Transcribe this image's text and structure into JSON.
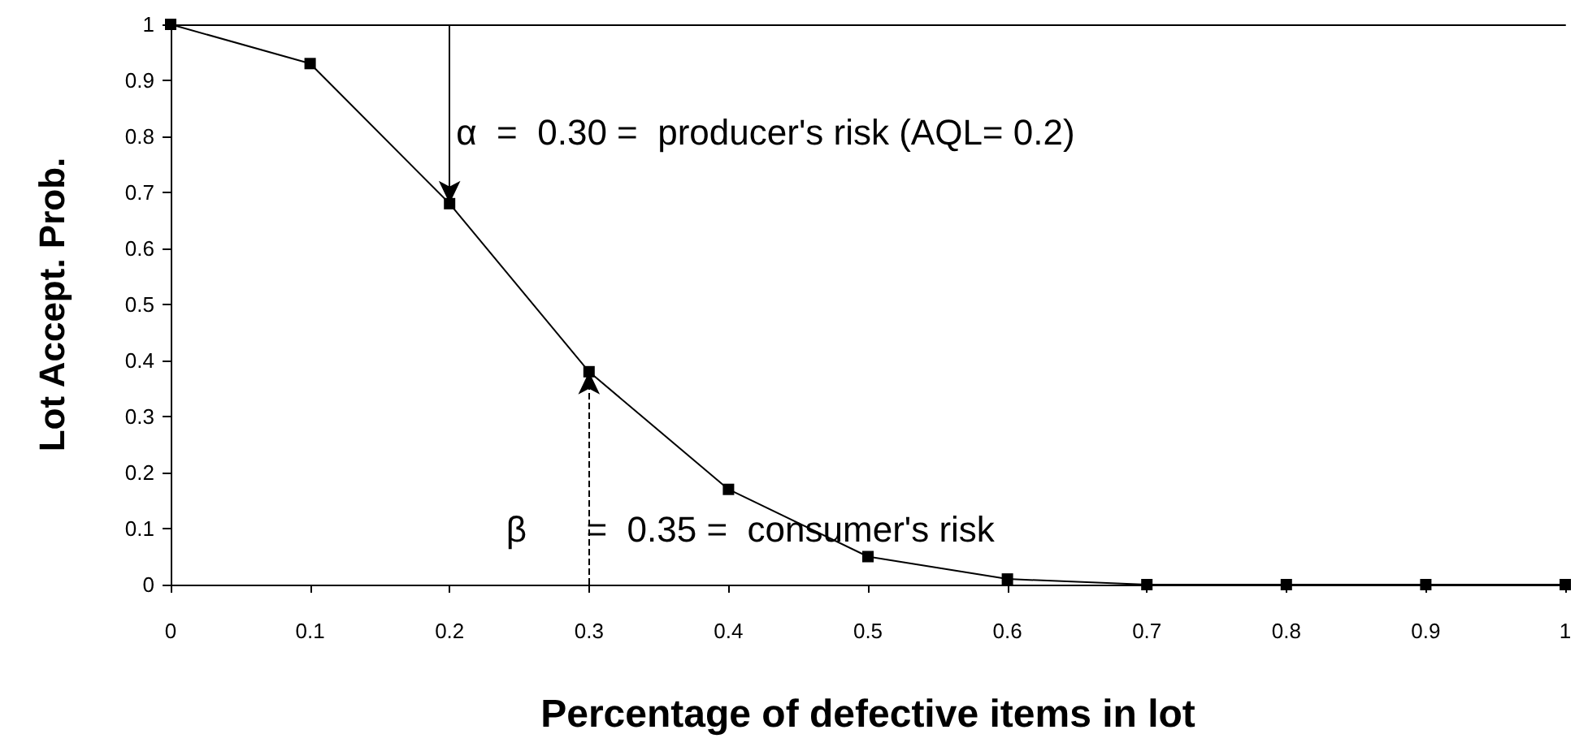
{
  "chart_data": {
    "type": "line",
    "xlabel": "Percentage of defective items in lot",
    "ylabel": "Lot Accept. Prob.",
    "x": [
      0,
      0.1,
      0.2,
      0.3,
      0.4,
      0.5,
      0.6,
      0.7,
      0.8,
      0.9,
      1
    ],
    "series": [
      {
        "color": "#000000",
        "values": [
          1,
          0.93,
          0.68,
          0.38,
          0.17,
          0.05,
          0.01,
          0,
          0,
          0,
          0
        ]
      }
    ],
    "xlim": [
      0,
      1
    ],
    "xticks": [
      0,
      0.1,
      0.2,
      0.3,
      0.4,
      0.5,
      0.6,
      0.7,
      0.8,
      0.9,
      1
    ],
    "ylim": [
      0,
      1
    ],
    "yticks": [
      0,
      0.1,
      0.2,
      0.3,
      0.4,
      0.5,
      0.6,
      0.7,
      0.8,
      0.9,
      1
    ],
    "annotations": [
      {
        "text": "α  =  0.30 =  producer's risk (AQL= 0.2)",
        "x": 0.2,
        "y": 0.68
      },
      {
        "text": "β      =  0.35 =  consumer's risk",
        "x": 0.3,
        "y": 0.38
      }
    ],
    "grid": false,
    "marker": "square",
    "line_style": "solid"
  }
}
